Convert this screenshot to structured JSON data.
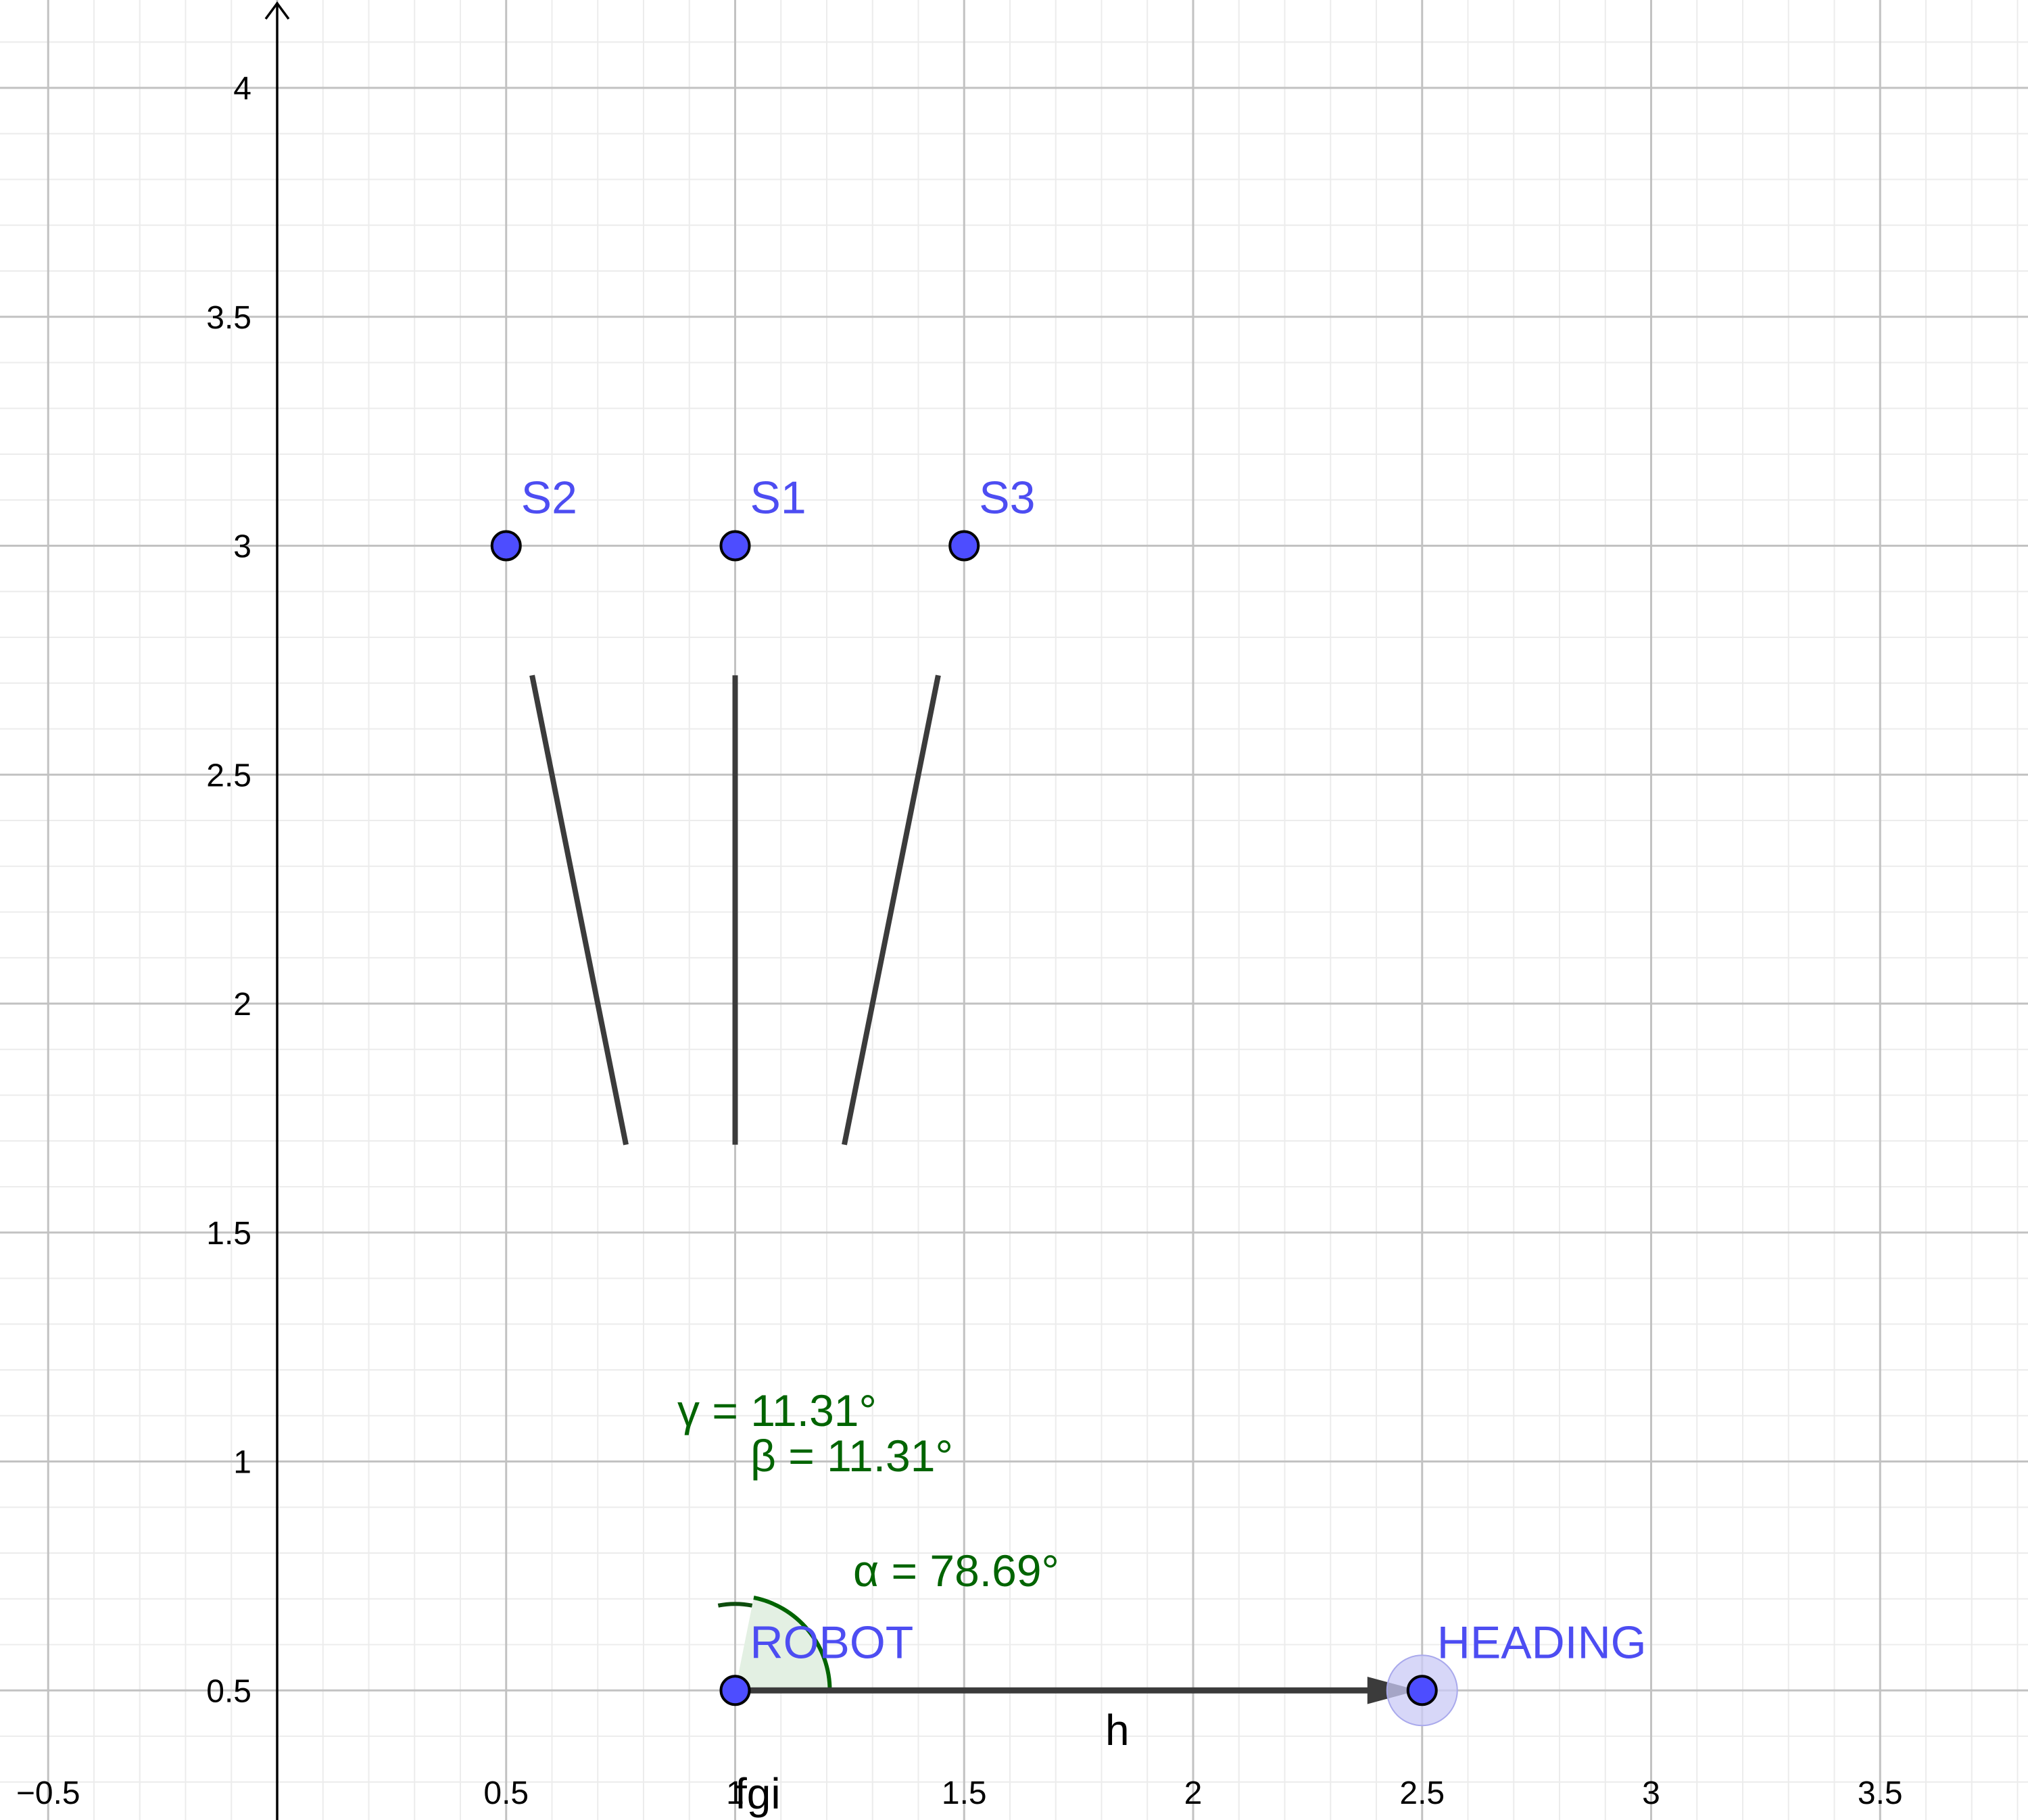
{
  "colors": {
    "background": "#ffffff",
    "grid_minor": "#ececec",
    "grid_major": "#c2c2c2",
    "axis": "#000000",
    "line": "#3b3b3b",
    "point_fill": "#4d4dff",
    "point_stroke": "#000000",
    "point_label": "#4d4df2",
    "angle": "#006400",
    "angle_fill": "#e3f0e3",
    "heading_halo": "#c9c9f5"
  },
  "chart_data": {
    "type": "geometry",
    "xlim": [
      -0.6,
      3.83
    ],
    "ylim": [
      0.22,
      4.2
    ],
    "grid": true,
    "x_ticks": [
      "−0.5",
      "0.5",
      "1",
      "1.5",
      "2",
      "2.5",
      "3",
      "3.5"
    ],
    "y_ticks": [
      "0.5",
      "1",
      "1.5",
      "2",
      "2.5",
      "3",
      "3.5",
      "4"
    ],
    "points": [
      {
        "name": "S2",
        "label": "S2",
        "x": 0.5,
        "y": 3
      },
      {
        "name": "S1",
        "label": "S1",
        "x": 1,
        "y": 3
      },
      {
        "name": "S3",
        "label": "S3",
        "x": 1.5,
        "y": 3
      },
      {
        "name": "ROBOT",
        "label": "ROBOT",
        "x": 1,
        "y": 0.5
      },
      {
        "name": "HEADING",
        "label": "HEADING",
        "x": 2.5,
        "y": 0.5,
        "selected": true
      }
    ],
    "lines": [
      {
        "name": "f",
        "through": [
          [
            1,
            0.5
          ],
          [
            1,
            3
          ]
        ]
      },
      {
        "name": "g",
        "through": [
          [
            1,
            0.5
          ],
          [
            0.5,
            3
          ]
        ]
      },
      {
        "name": "i",
        "through": [
          [
            1,
            0.5
          ],
          [
            1.5,
            3
          ]
        ]
      }
    ],
    "line_label_text": "fgi",
    "vectors": [
      {
        "name": "h",
        "label": "h",
        "from": [
          1,
          0.5
        ],
        "to": [
          2.5,
          0.5
        ]
      }
    ],
    "angles": [
      {
        "name": "alpha",
        "label": "α = 78.69°",
        "value_deg": 78.69
      },
      {
        "name": "beta",
        "label": "β = 11.31°",
        "value_deg": 11.31
      },
      {
        "name": "gamma",
        "label": "γ = 11.31°",
        "value_deg": 11.31
      }
    ]
  }
}
